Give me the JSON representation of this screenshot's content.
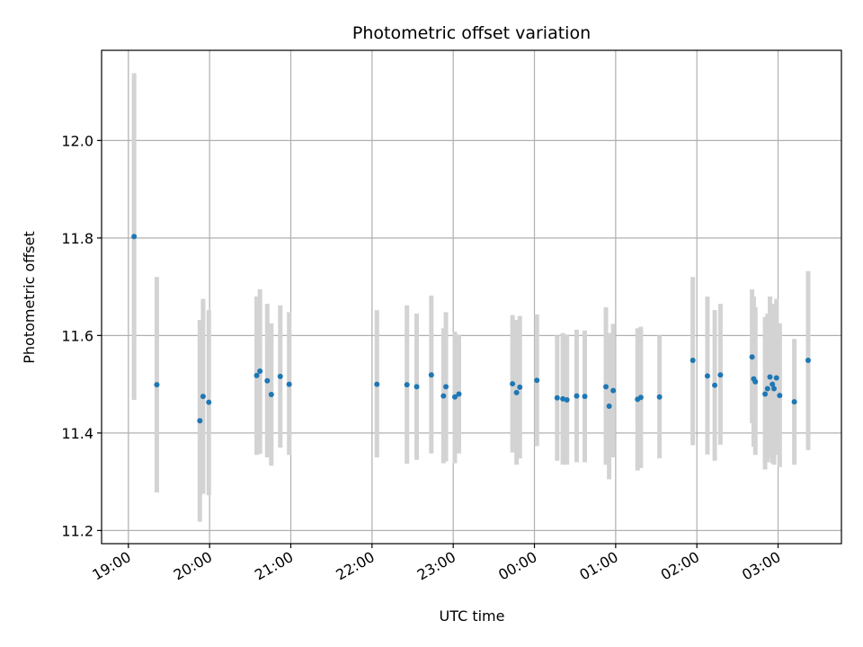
{
  "chart_data": {
    "type": "scatter",
    "title": "Photometric offset variation",
    "xlabel": "UTC time",
    "ylabel": "Photometric offset",
    "x_unit": "hours, relative to 00:00 UTC",
    "xlim": [
      -5.33,
      3.78
    ],
    "ylim": [
      11.173,
      12.185
    ],
    "grid": true,
    "x_ticks": [
      {
        "value": -5,
        "label": "19:00"
      },
      {
        "value": -4,
        "label": "20:00"
      },
      {
        "value": -3,
        "label": "21:00"
      },
      {
        "value": -2,
        "label": "22:00"
      },
      {
        "value": -1,
        "label": "23:00"
      },
      {
        "value": 0,
        "label": "00:00"
      },
      {
        "value": 1,
        "label": "01:00"
      },
      {
        "value": 2,
        "label": "02:00"
      },
      {
        "value": 3,
        "label": "03:00"
      }
    ],
    "y_ticks": [
      {
        "value": 11.2,
        "label": "11.2"
      },
      {
        "value": 11.4,
        "label": "11.4"
      },
      {
        "value": 11.6,
        "label": "11.6"
      },
      {
        "value": 11.8,
        "label": "11.8"
      },
      {
        "value": 12.0,
        "label": "12.0"
      }
    ],
    "colors": {
      "point": "#1f77b4",
      "errorbar": "#d3d3d3",
      "grid": "#b0b0b0"
    },
    "points": [
      {
        "x": -4.93,
        "y": 11.803,
        "low": 11.468,
        "high": 12.138
      },
      {
        "x": -4.65,
        "y": 11.499,
        "low": 11.278,
        "high": 11.72
      },
      {
        "x": -4.12,
        "y": 11.425,
        "low": 11.218,
        "high": 11.632
      },
      {
        "x": -4.08,
        "y": 11.475,
        "low": 11.275,
        "high": 11.675
      },
      {
        "x": -4.01,
        "y": 11.463,
        "low": 11.272,
        "high": 11.652
      },
      {
        "x": -3.42,
        "y": 11.518,
        "low": 11.355,
        "high": 11.68
      },
      {
        "x": -3.38,
        "y": 11.527,
        "low": 11.357,
        "high": 11.695
      },
      {
        "x": -3.29,
        "y": 11.507,
        "low": 11.35,
        "high": 11.665
      },
      {
        "x": -3.24,
        "y": 11.479,
        "low": 11.333,
        "high": 11.625
      },
      {
        "x": -3.13,
        "y": 11.516,
        "low": 11.37,
        "high": 11.662
      },
      {
        "x": -3.02,
        "y": 11.5,
        "low": 11.355,
        "high": 11.648
      },
      {
        "x": -1.94,
        "y": 11.5,
        "low": 11.35,
        "high": 11.652
      },
      {
        "x": -1.57,
        "y": 11.499,
        "low": 11.337,
        "high": 11.662
      },
      {
        "x": -1.45,
        "y": 11.495,
        "low": 11.345,
        "high": 11.645
      },
      {
        "x": -1.27,
        "y": 11.519,
        "low": 11.358,
        "high": 11.682
      },
      {
        "x": -1.12,
        "y": 11.476,
        "low": 11.338,
        "high": 11.615
      },
      {
        "x": -1.09,
        "y": 11.495,
        "low": 11.342,
        "high": 11.648
      },
      {
        "x": -0.98,
        "y": 11.474,
        "low": 11.338,
        "high": 11.608
      },
      {
        "x": -0.93,
        "y": 11.48,
        "low": 11.358,
        "high": 11.602
      },
      {
        "x": -0.27,
        "y": 11.501,
        "low": 11.36,
        "high": 11.642
      },
      {
        "x": -0.22,
        "y": 11.483,
        "low": 11.335,
        "high": 11.632
      },
      {
        "x": -0.18,
        "y": 11.494,
        "low": 11.348,
        "high": 11.64
      },
      {
        "x": 0.03,
        "y": 11.508,
        "low": 11.373,
        "high": 11.643
      },
      {
        "x": 0.28,
        "y": 11.472,
        "low": 11.343,
        "high": 11.6
      },
      {
        "x": 0.35,
        "y": 11.47,
        "low": 11.335,
        "high": 11.605
      },
      {
        "x": 0.4,
        "y": 11.468,
        "low": 11.335,
        "high": 11.602
      },
      {
        "x": 0.52,
        "y": 11.476,
        "low": 11.34,
        "high": 11.612
      },
      {
        "x": 0.62,
        "y": 11.475,
        "low": 11.34,
        "high": 11.61
      },
      {
        "x": 0.88,
        "y": 11.495,
        "low": 11.335,
        "high": 11.658
      },
      {
        "x": 0.92,
        "y": 11.455,
        "low": 11.305,
        "high": 11.605
      },
      {
        "x": 0.97,
        "y": 11.487,
        "low": 11.35,
        "high": 11.624
      },
      {
        "x": 1.27,
        "y": 11.469,
        "low": 11.323,
        "high": 11.615
      },
      {
        "x": 1.31,
        "y": 11.473,
        "low": 11.328,
        "high": 11.618
      },
      {
        "x": 1.54,
        "y": 11.474,
        "low": 11.348,
        "high": 11.6
      },
      {
        "x": 1.95,
        "y": 11.549,
        "low": 11.375,
        "high": 11.72
      },
      {
        "x": 2.13,
        "y": 11.517,
        "low": 11.356,
        "high": 11.68
      },
      {
        "x": 2.22,
        "y": 11.498,
        "low": 11.343,
        "high": 11.652
      },
      {
        "x": 2.29,
        "y": 11.519,
        "low": 11.376,
        "high": 11.665
      },
      {
        "x": 2.68,
        "y": 11.556,
        "low": 11.42,
        "high": 11.695
      },
      {
        "x": 2.7,
        "y": 11.511,
        "low": 11.372,
        "high": 11.68
      },
      {
        "x": 2.72,
        "y": 11.505,
        "low": 11.355,
        "high": 11.658
      },
      {
        "x": 2.84,
        "y": 11.48,
        "low": 11.325,
        "high": 11.638
      },
      {
        "x": 2.87,
        "y": 11.491,
        "low": 11.34,
        "high": 11.645
      },
      {
        "x": 2.9,
        "y": 11.515,
        "low": 11.35,
        "high": 11.68
      },
      {
        "x": 2.93,
        "y": 11.5,
        "low": 11.338,
        "high": 11.66
      },
      {
        "x": 2.95,
        "y": 11.491,
        "low": 11.335,
        "high": 11.665
      },
      {
        "x": 2.98,
        "y": 11.513,
        "low": 11.355,
        "high": 11.675
      },
      {
        "x": 3.02,
        "y": 11.477,
        "low": 11.33,
        "high": 11.625
      },
      {
        "x": 3.2,
        "y": 11.464,
        "low": 11.335,
        "high": 11.593
      },
      {
        "x": 3.37,
        "y": 11.549,
        "low": 11.365,
        "high": 11.732
      }
    ]
  }
}
